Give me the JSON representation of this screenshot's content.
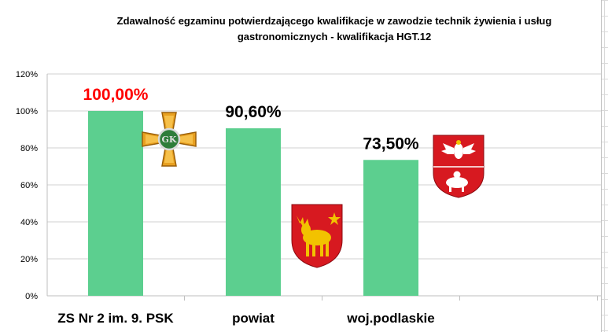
{
  "chart_data": {
    "type": "bar",
    "title_lines": [
      "Zdawalność egzaminu potwierdzającego kwalifikacje w zawodzie technik żywienia i usług",
      "gastronomicznych - kwalifikacja HGT.12"
    ],
    "categories": [
      "ZS Nr 2 im. 9. PSK",
      "powiat",
      "woj.podlaskie"
    ],
    "values": [
      100.0,
      90.6,
      73.5
    ],
    "data_labels": [
      "100,00%",
      "90,60%",
      "73,50%"
    ],
    "data_label_colors": [
      "#ff0000",
      "#000000",
      "#000000"
    ],
    "bar_color": "#5ccf8f",
    "ylim": [
      0,
      120
    ],
    "yticks": [
      0,
      20,
      40,
      60,
      80,
      100,
      120
    ],
    "ytick_labels": [
      "0%",
      "20%",
      "40%",
      "60%",
      "80%",
      "100%",
      "120%"
    ],
    "grid": true,
    "legend": "none",
    "images": [
      {
        "name": "order-cross-emblem",
        "color_primary": "#e8a020",
        "color_secondary": "#2e7d3a"
      },
      {
        "name": "elk-coat-of-arms",
        "color_primary": "#d71920",
        "color_secondary": "#f2c200"
      },
      {
        "name": "podlaskie-coat-of-arms",
        "color_primary": "#d71920",
        "color_secondary": "#ffffff"
      }
    ]
  }
}
